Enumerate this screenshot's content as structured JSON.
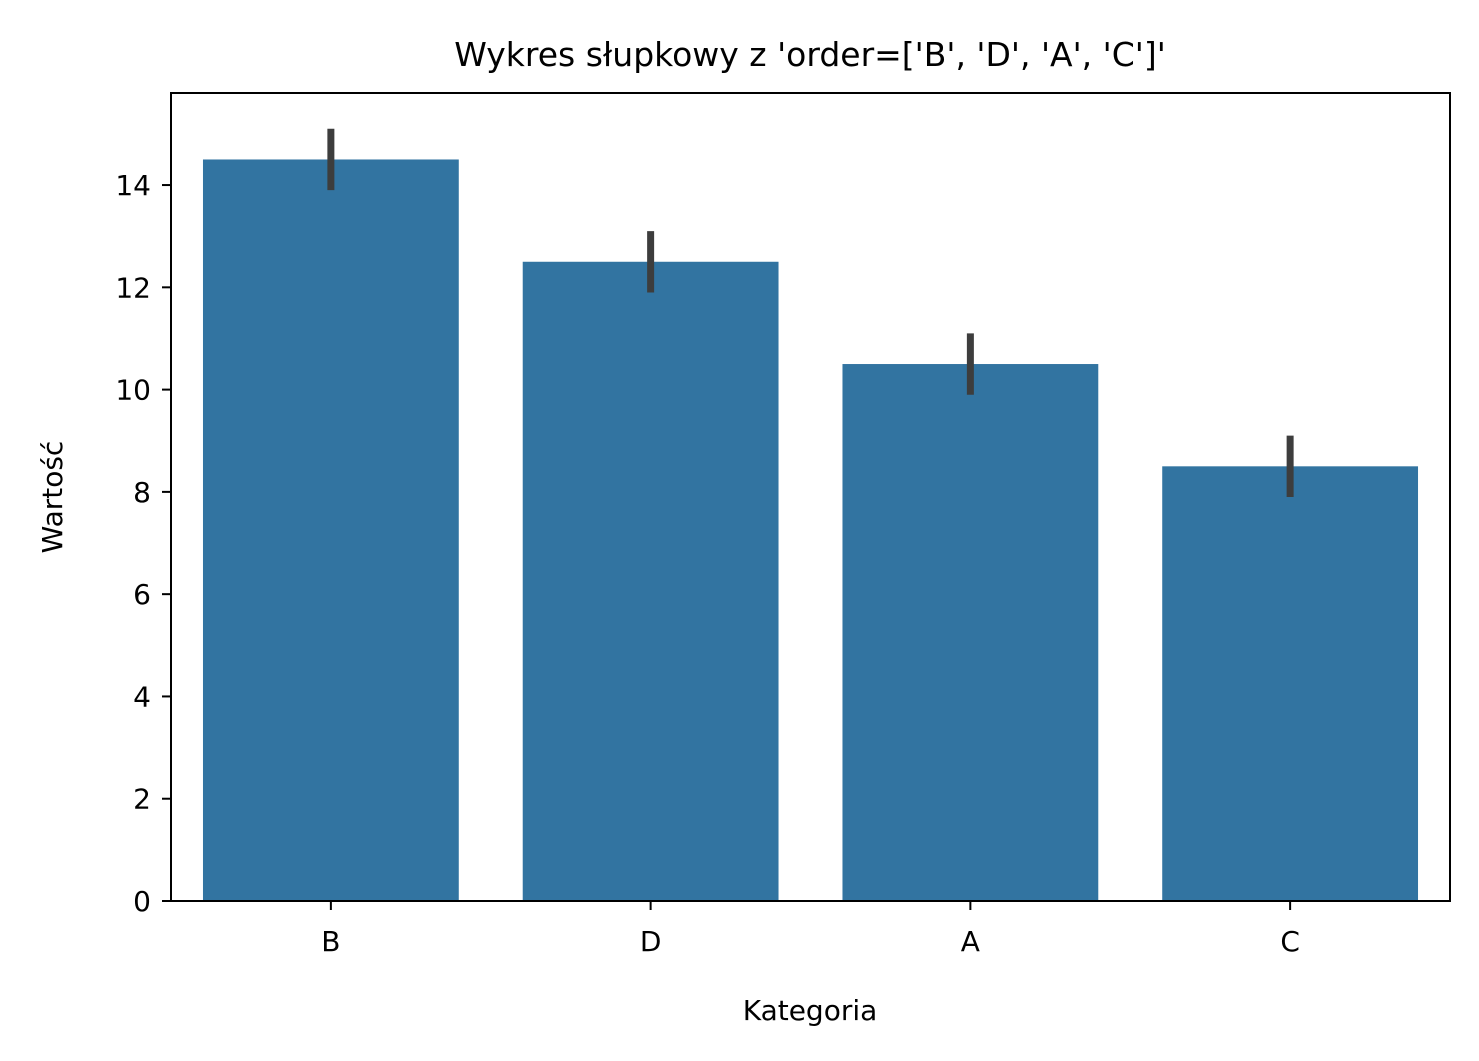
{
  "chart_data": {
    "type": "bar",
    "title": "Wykres słupkowy z 'order=['B', 'D', 'A', 'C']'",
    "xlabel": "Kategoria",
    "ylabel": "Wartość",
    "categories": [
      "B",
      "D",
      "A",
      "C"
    ],
    "values": [
      14.5,
      12.5,
      10.5,
      8.5
    ],
    "error_bars": [
      {
        "low": 13.9,
        "high": 15.1
      },
      {
        "low": 11.9,
        "high": 13.1
      },
      {
        "low": 9.9,
        "high": 11.1
      },
      {
        "low": 7.9,
        "high": 9.1
      }
    ],
    "ylim": [
      0,
      15.8
    ],
    "yticks": [
      0,
      2,
      4,
      6,
      8,
      10,
      12,
      14
    ],
    "grid": false,
    "colors": {
      "bar": "#3274a1",
      "error_bar": "#3d3d3d",
      "axes": "#000000"
    }
  }
}
